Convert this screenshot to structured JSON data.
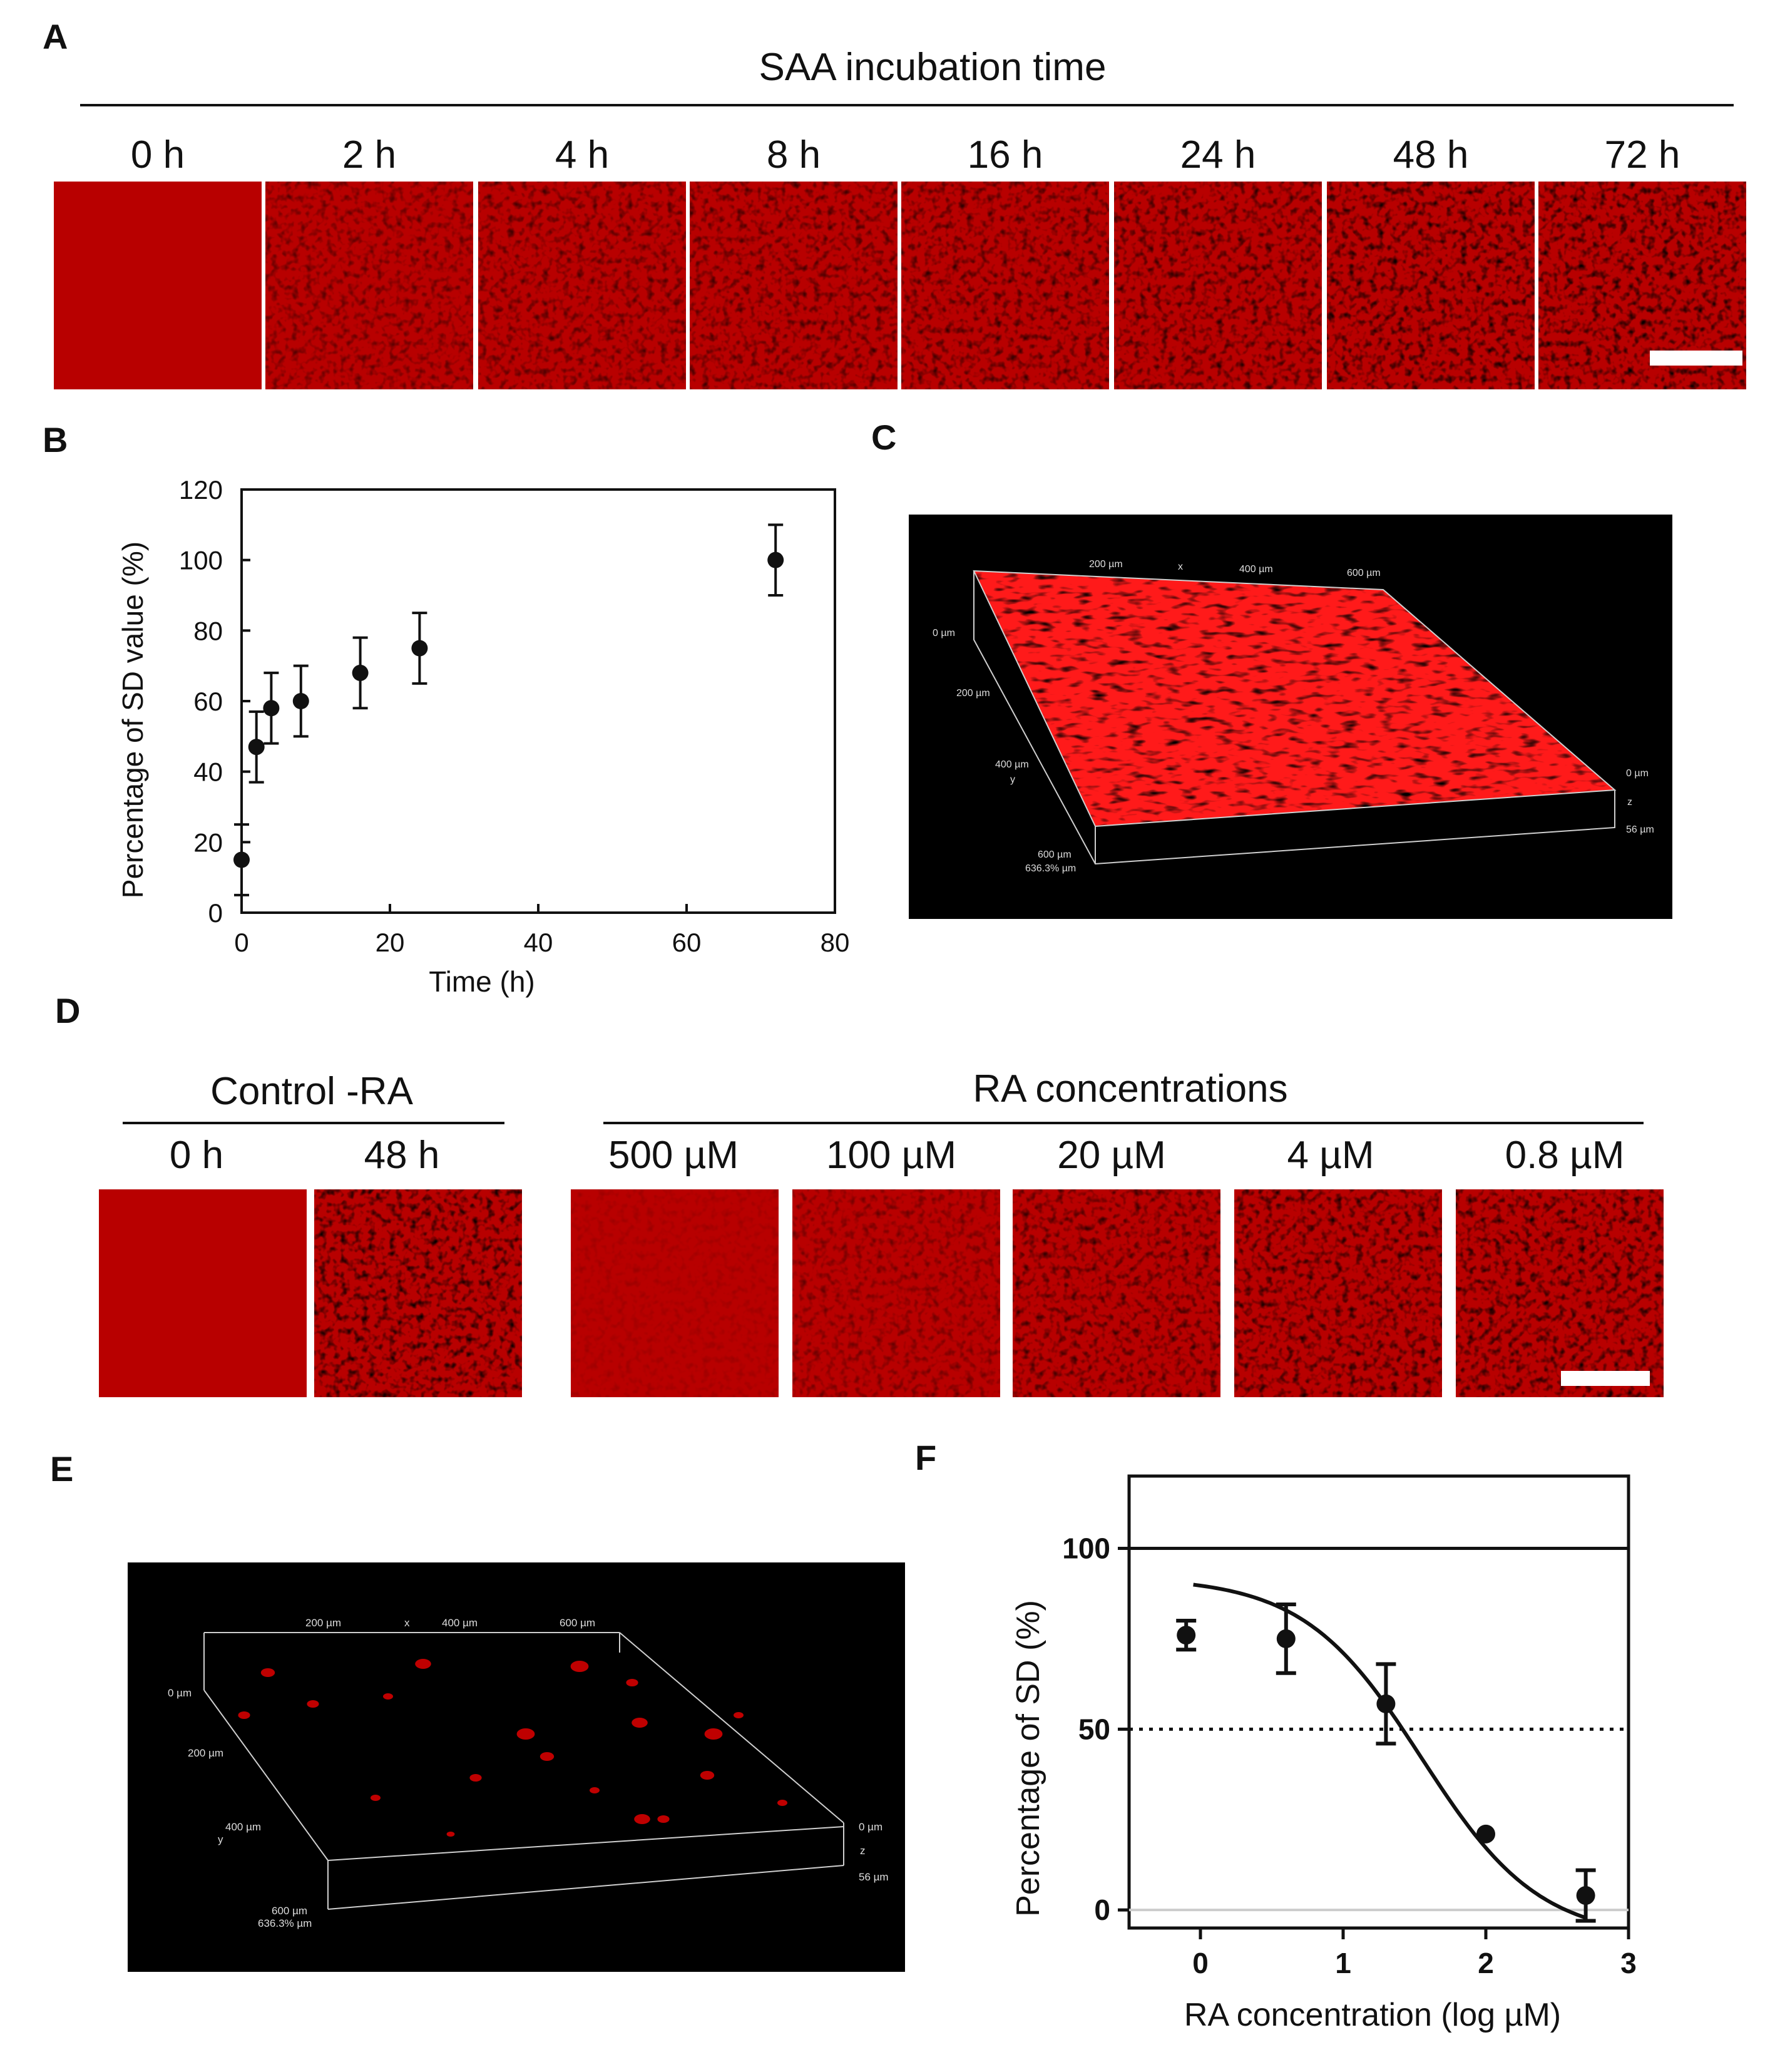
{
  "panels": {
    "A": {
      "letter": "A",
      "header": "SAA incubation time",
      "time_labels": [
        "0 h",
        "2 h",
        "4 h",
        "8 h",
        "16 h",
        "24 h",
        "48 h",
        "72 h"
      ],
      "tile_brightness": [
        0.05,
        0.55,
        0.62,
        0.68,
        0.72,
        0.78,
        0.92,
        0.95
      ]
    },
    "B": {
      "letter": "B"
    },
    "C": {
      "letter": "C"
    },
    "D": {
      "letter": "D",
      "control_header": "Control -RA",
      "control_labels": [
        "0 h",
        "48 h"
      ],
      "ra_header": "RA concentrations",
      "ra_labels": [
        "500 µM",
        "100 µM",
        "20 µM",
        "4 µM",
        "0.8 µM"
      ],
      "tile_brightness": [
        0.05,
        0.95,
        0.15,
        0.45,
        0.7,
        0.85,
        0.9
      ]
    },
    "E": {
      "letter": "E"
    },
    "F": {
      "letter": "F"
    }
  },
  "volume_labels": {
    "C": {
      "x_ticks": [
        "200 µm",
        "x",
        "400 µm",
        "600 µm"
      ],
      "y_ticks": [
        "0 µm",
        "200 µm",
        "400 µm",
        "y",
        "600 µm",
        "636.3% µm"
      ],
      "z_ticks": [
        "0 µm",
        "z",
        "56 µm"
      ]
    },
    "E": {
      "x_ticks": [
        "200 µm",
        "x",
        "400 µm",
        "600 µm"
      ],
      "y_ticks": [
        "0 µm",
        "200 µm",
        "400 µm",
        "y",
        "600 µm",
        "636.3% µm"
      ],
      "z_ticks": [
        "0 µm",
        "z",
        "56 µm"
      ]
    }
  },
  "chart_data": [
    {
      "panel": "B",
      "type": "scatter",
      "title": "",
      "xlabel": "Time (h)",
      "ylabel": "Percentage of SD value (%)",
      "xlim": [
        0,
        80
      ],
      "ylim": [
        0,
        120
      ],
      "x_ticks": [
        0,
        20,
        40,
        60,
        80
      ],
      "y_ticks": [
        0,
        20,
        40,
        60,
        80,
        100,
        120
      ],
      "x_tick_labels": [
        "0",
        "20",
        "40",
        "60",
        "80"
      ],
      "y_tick_labels": [
        "0",
        "20",
        "40",
        "60",
        "80",
        "100",
        "120"
      ],
      "series": [
        {
          "name": "SD",
          "x": [
            0,
            2,
            4,
            8,
            16,
            24,
            72
          ],
          "y": [
            15,
            47,
            58,
            60,
            68,
            75,
            100
          ],
          "error": [
            10,
            10,
            10,
            10,
            10,
            10,
            10
          ]
        }
      ]
    },
    {
      "panel": "F",
      "type": "scatter",
      "title": "",
      "xlabel": "RA concentration (log µM)",
      "ylabel": "Percentage of SD (%)",
      "xlim": [
        -0.5,
        3
      ],
      "ylim": [
        -5,
        120
      ],
      "x_ticks": [
        0,
        1,
        2,
        3
      ],
      "y_ticks": [
        0,
        50,
        100
      ],
      "x_tick_labels": [
        "0",
        "1",
        "2",
        "3"
      ],
      "y_tick_labels": [
        "0",
        "50",
        "100"
      ],
      "reference_lines": [
        {
          "y": 100,
          "style": "solid"
        },
        {
          "y": 50,
          "style": "dotted"
        },
        {
          "y": 0,
          "style": "solid-gray"
        }
      ],
      "series": [
        {
          "name": "RA",
          "x": [
            -0.1,
            0.6,
            1.3,
            2.0,
            2.7
          ],
          "y": [
            76,
            75,
            57,
            21,
            4
          ],
          "error": [
            4,
            9.5,
            11,
            0,
            7
          ]
        }
      ],
      "fit": {
        "type": "sigmoid",
        "top": 92,
        "bottom": -8,
        "log_ic50": 1.55,
        "hill": 1.05
      }
    }
  ]
}
